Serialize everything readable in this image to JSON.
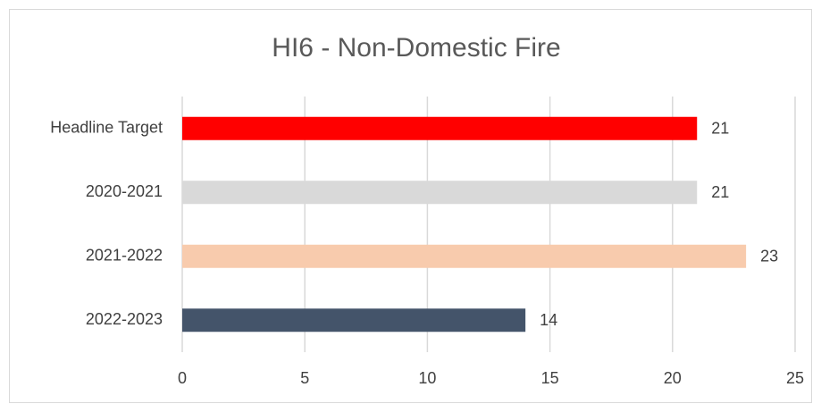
{
  "chart_data": {
    "type": "bar",
    "orientation": "horizontal",
    "title": "HI6 - Non-Domestic Fire",
    "categories": [
      "Headline Target",
      "2020-2021",
      "2021-2022",
      "2022-2023"
    ],
    "values": [
      21,
      21,
      23,
      14
    ],
    "colors": [
      "#ff0000",
      "#d9d9d9",
      "#f8cbad",
      "#44546a"
    ],
    "xlim": [
      0,
      25
    ],
    "xticks": [
      0,
      5,
      10,
      15,
      20,
      25
    ],
    "grid": true
  }
}
